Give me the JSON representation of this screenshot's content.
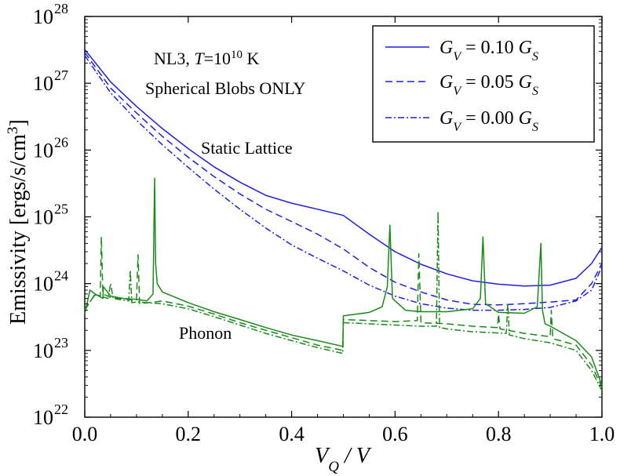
{
  "chart_data": {
    "type": "line",
    "xlabel": "V_Q / V",
    "ylabel": "Emissivity [ergs/s/cm^3]",
    "xlim": [
      0.0,
      1.0
    ],
    "ylim": [
      1e+22,
      1e+28
    ],
    "yscale": "log",
    "grid": false,
    "legend_position": "top-right",
    "x_ticks": [
      "0.0",
      "0.2",
      "0.4",
      "0.6",
      "0.8",
      "1.0"
    ],
    "y_ticks": [
      22,
      23,
      24,
      25,
      26,
      27,
      28
    ],
    "annotations": {
      "model": "NL3, T = 10^10 K",
      "geometry": "Spherical Blobs ONLY",
      "static": "Static Lattice",
      "phonon": "Phonon"
    },
    "colors": {
      "static": "#1f1fe0",
      "phonon": "#1a8a1a"
    },
    "legend": [
      {
        "name": "G_V = 0.10 G_S",
        "dash": "solid"
      },
      {
        "name": "G_V = 0.05 G_S",
        "dash": "dashed"
      },
      {
        "name": "G_V = 0.00 G_S",
        "dash": "dashdot"
      }
    ],
    "series": [
      {
        "name": "Static Lattice, G_V = 0.10 G_S",
        "group": "static",
        "dash": "solid",
        "x": [
          0.0,
          0.05,
          0.1,
          0.15,
          0.2,
          0.25,
          0.3,
          0.35,
          0.4,
          0.45,
          0.5,
          0.55,
          0.6,
          0.65,
          0.7,
          0.75,
          0.8,
          0.85,
          0.9,
          0.95,
          0.98,
          1.0
        ],
        "y": [
          3.2e+27,
          1.05e+27,
          4.5e+26,
          2.1e+26,
          1.05e+26,
          5.6e+25,
          3.3e+25,
          2.1e+25,
          1.6e+25,
          1.3e+25,
          1.05e+25,
          5.5e+24,
          3e+24,
          1.95e+24,
          1.4e+24,
          1.1e+24,
          9.8e+23,
          9.2e+23,
          9.5e+23,
          1.2e+24,
          2e+24,
          3.5e+24
        ]
      },
      {
        "name": "Static Lattice, G_V = 0.05 G_S",
        "group": "static",
        "dash": "dashed",
        "x": [
          0.0,
          0.05,
          0.1,
          0.15,
          0.2,
          0.25,
          0.3,
          0.35,
          0.4,
          0.45,
          0.5,
          0.55,
          0.6,
          0.65,
          0.7,
          0.75,
          0.8,
          0.85,
          0.9,
          0.95,
          0.98,
          1.0
        ],
        "y": [
          2.9e+27,
          8.5e+26,
          3.6e+26,
          1.6e+26,
          7.8e+25,
          4e+25,
          2.2e+25,
          1.3e+25,
          8.5e+24,
          5.5e+24,
          3.3e+24,
          1.75e+24,
          1.05e+24,
          7.5e+23,
          5.7e+23,
          4.9e+23,
          4.8e+23,
          5e+23,
          5.3e+23,
          5.7e+23,
          1e+24,
          2e+24
        ]
      },
      {
        "name": "Static Lattice, G_V = 0.00 G_S",
        "group": "static",
        "dash": "dashdot",
        "x": [
          0.0,
          0.05,
          0.1,
          0.15,
          0.2,
          0.25,
          0.3,
          0.35,
          0.4,
          0.45,
          0.5,
          0.55,
          0.6,
          0.65,
          0.7,
          0.75,
          0.8,
          0.85,
          0.9,
          0.95,
          0.98,
          1.0
        ],
        "y": [
          2.6e+27,
          7.2e+26,
          2.8e+26,
          1.2e+26,
          5.5e+25,
          2.6e+25,
          1.3e+25,
          6.8e+24,
          3.8e+24,
          2.4e+24,
          1.55e+24,
          9.5e+23,
          6.5e+23,
          5e+23,
          4.3e+23,
          4e+23,
          4e+23,
          4.1e+23,
          4.4e+23,
          5.5e+23,
          8e+23,
          1.8e+24
        ]
      },
      {
        "name": "Phonon, G_V = 0.10 G_S",
        "group": "phonon",
        "dash": "solid",
        "x": [
          0.0,
          0.01,
          0.02,
          0.035,
          0.036,
          0.05,
          0.075,
          0.1,
          0.12,
          0.132,
          0.135,
          0.137,
          0.14,
          0.15,
          0.2,
          0.25,
          0.3,
          0.35,
          0.4,
          0.45,
          0.499,
          0.5,
          0.55,
          0.575,
          0.585,
          0.59,
          0.595,
          0.62,
          0.65,
          0.7,
          0.75,
          0.765,
          0.77,
          0.775,
          0.8,
          0.85,
          0.875,
          0.882,
          0.885,
          0.89,
          0.9,
          0.95,
          0.98,
          1.0
        ],
        "y": [
          3.5e+23,
          8e+23,
          7e+23,
          6e+23,
          9e+23,
          6.5e+23,
          6e+23,
          5.8e+23,
          5.5e+23,
          7e+23,
          3.8e+25,
          2e+24,
          1e+24,
          7.5e+23,
          5.2e+23,
          3.8e+23,
          2.9e+23,
          2.2e+23,
          1.7e+23,
          1.4e+23,
          1.15e+23,
          3.3e+23,
          3.7e+23,
          4.5e+23,
          9e+23,
          7.5e+24,
          6e+23,
          4e+23,
          3.8e+23,
          3.8e+23,
          4.2e+23,
          6e+23,
          5e+24,
          5e+23,
          3.7e+23,
          3.6e+23,
          4.5e+23,
          4e+24,
          4e+23,
          2.5e+23,
          2.3e+23,
          1.4e+23,
          8e+22,
          3e+22
        ]
      },
      {
        "name": "Phonon, G_V = 0.05 G_S",
        "group": "phonon",
        "dash": "dashed",
        "x": [
          0.0,
          0.02,
          0.03,
          0.032,
          0.035,
          0.05,
          0.1,
          0.103,
          0.106,
          0.15,
          0.2,
          0.25,
          0.3,
          0.35,
          0.4,
          0.45,
          0.499,
          0.5,
          0.55,
          0.6,
          0.643,
          0.646,
          0.65,
          0.7,
          0.75,
          0.798,
          0.8,
          0.803,
          0.85,
          0.9,
          0.902,
          0.905,
          0.95,
          0.98,
          1.0
        ],
        "y": [
          4e+23,
          7e+23,
          6.5e+23,
          5e+24,
          7e+23,
          6.2e+23,
          5.6e+23,
          2.7e+24,
          5e+23,
          5.5e+23,
          4.6e+23,
          3.5e+23,
          2.6e+23,
          2e+23,
          1.55e+23,
          1.2e+23,
          1e+23,
          2.9e+23,
          2.8e+23,
          2.7e+23,
          2.8e+23,
          2.8e+24,
          2.6e+23,
          2.5e+23,
          2.3e+23,
          2.2e+23,
          3.5e+23,
          2.1e+23,
          1.8e+23,
          1.6e+23,
          4e+23,
          1.5e+23,
          1.2e+23,
          6e+22,
          2.8e+22
        ]
      },
      {
        "name": "Phonon, G_V = 0.00 G_S",
        "group": "phonon",
        "dash": "dashdot",
        "x": [
          0.0,
          0.02,
          0.045,
          0.05,
          0.055,
          0.085,
          0.088,
          0.091,
          0.1,
          0.15,
          0.2,
          0.25,
          0.3,
          0.35,
          0.4,
          0.45,
          0.499,
          0.5,
          0.55,
          0.6,
          0.65,
          0.68,
          0.683,
          0.686,
          0.7,
          0.75,
          0.815,
          0.818,
          0.821,
          0.85,
          0.9,
          0.95,
          0.98,
          1.0
        ],
        "y": [
          4.2e+23,
          6.8e+23,
          6e+23,
          1e+24,
          6e+23,
          5.5e+23,
          1.6e+24,
          5.2e+23,
          5.3e+23,
          5e+23,
          4.2e+23,
          3.2e+23,
          2.4e+23,
          1.8e+23,
          1.4e+23,
          1.1e+23,
          9e+22,
          2.6e+23,
          2.5e+23,
          2.4e+23,
          2.3e+23,
          2.3e+23,
          1.2e+25,
          2.2e+23,
          2.1e+23,
          1.9e+23,
          1.8e+23,
          5.2e+23,
          1.7e+23,
          1.5e+23,
          1.3e+23,
          1e+23,
          5e+22,
          2.5e+22
        ]
      }
    ]
  }
}
